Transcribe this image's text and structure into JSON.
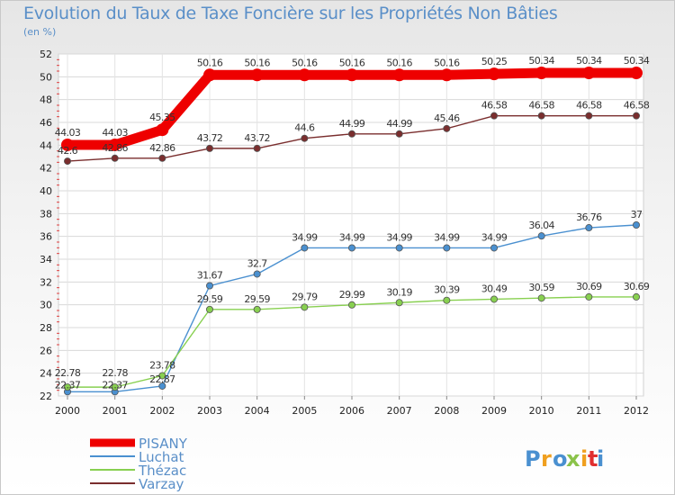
{
  "chart_data": {
    "type": "line",
    "title": "Evolution du Taux de Taxe Foncière sur les Propriétés Non Bâties",
    "ylabel": "(en %)",
    "xlabel": "",
    "categories": [
      "2000",
      "2001",
      "2002",
      "2003",
      "2004",
      "2005",
      "2006",
      "2007",
      "2008",
      "2009",
      "2010",
      "2011",
      "2012"
    ],
    "ylim": [
      22,
      52
    ],
    "yticks": [
      22,
      24,
      26,
      28,
      30,
      32,
      34,
      36,
      38,
      40,
      42,
      44,
      46,
      48,
      50,
      52
    ],
    "grid": true,
    "legend_position": "bottom-left",
    "series": [
      {
        "name": "PISANY",
        "color": "#ee0000",
        "values": [
          44.03,
          44.03,
          45.35,
          50.16,
          50.16,
          50.16,
          50.16,
          50.16,
          50.16,
          50.25,
          50.34,
          50.34,
          50.34
        ],
        "labels": [
          "44.03",
          "44.03",
          "45.35",
          "50.16",
          "50.16",
          "50.16",
          "50.16",
          "50.16",
          "50.16",
          "50.25",
          "50.34",
          "50.34",
          "50.34"
        ]
      },
      {
        "name": "Luchat",
        "color": "#4a90d0",
        "values": [
          22.37,
          22.37,
          22.87,
          31.67,
          32.7,
          34.99,
          34.99,
          34.99,
          34.99,
          34.99,
          36.04,
          36.76,
          37
        ],
        "labels": [
          "22.37",
          "22.37",
          "22.87",
          "31.67",
          "32.7",
          "34.99",
          "34.99",
          "34.99",
          "34.99",
          "34.99",
          "36.04",
          "36.76",
          "37"
        ]
      },
      {
        "name": "Thézac",
        "color": "#88d050",
        "values": [
          22.78,
          22.78,
          23.78,
          29.59,
          29.59,
          29.79,
          29.99,
          30.19,
          30.39,
          30.49,
          30.59,
          30.69,
          30.69
        ],
        "labels": [
          "22.78",
          "22.78",
          "23.78",
          "29.59",
          "29.59",
          "29.79",
          "29.99",
          "30.19",
          "30.39",
          "30.49",
          "30.59",
          "30.69",
          "30.69"
        ]
      },
      {
        "name": "Varzay",
        "color": "#7a2e2e",
        "values": [
          42.6,
          42.86,
          42.86,
          43.72,
          43.72,
          44.6,
          44.99,
          44.99,
          45.46,
          46.58,
          46.58,
          46.58,
          46.58
        ],
        "labels": [
          "42.6",
          "42.86",
          "42.86",
          "43.72",
          "43.72",
          "44.6",
          "44.99",
          "44.99",
          "45.46",
          "46.58",
          "46.58",
          "46.58",
          "46.58"
        ]
      }
    ]
  },
  "logo": {
    "letters": [
      "P",
      "r",
      "o",
      "x",
      "i",
      "t",
      "i"
    ],
    "colors": [
      "#4a90d0",
      "#f0a020",
      "#4a90d0",
      "#8bc34a",
      "#f0a020",
      "#e03030",
      "#4a90d0"
    ]
  }
}
